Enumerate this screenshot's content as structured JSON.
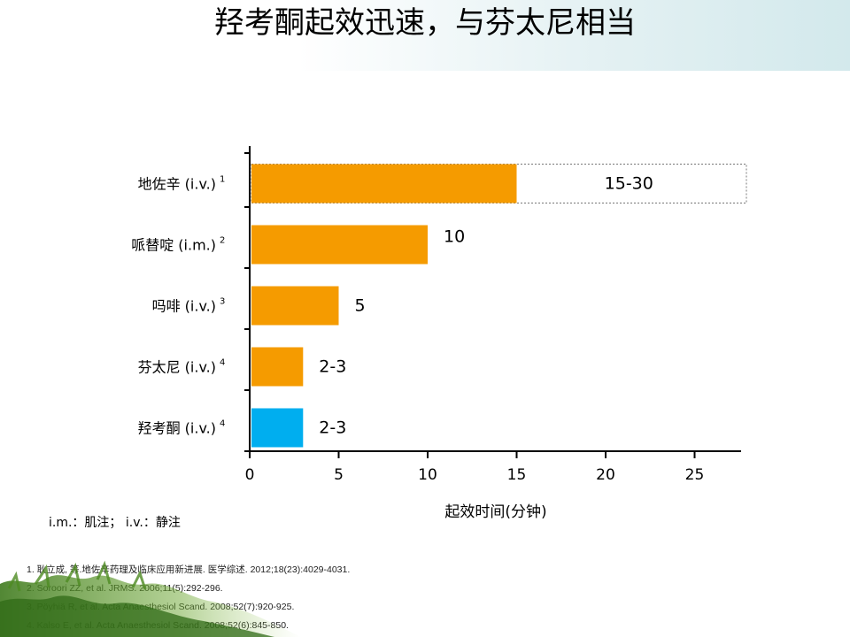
{
  "slide": {
    "title": "羟考酮起效迅速，与芬太尼相当"
  },
  "chart_data": {
    "type": "bar",
    "orientation": "horizontal",
    "xlabel": "起效时间(分钟)",
    "xlim": [
      0,
      27.5
    ],
    "xticks": [
      "0",
      "5",
      "10",
      "15",
      "20",
      "25"
    ],
    "categories": [
      "地佐辛 (i.v.) 1",
      "哌替啶 (i.m.) 2",
      "吗啡 (i.v.) 3",
      "芬太尼 (i.v.) 4",
      "羟考酮 (i.v.) 4"
    ],
    "values": [
      15,
      10,
      5,
      3,
      3
    ],
    "range_max": [
      30,
      null,
      null,
      null,
      null
    ],
    "data_labels": [
      "15-30",
      "10",
      "5",
      "2-3",
      "2-3"
    ],
    "colors": [
      "#f59b00",
      "#f59b00",
      "#f59b00",
      "#f59b00",
      "#00aeef"
    ],
    "grid": false
  },
  "notes": {
    "abbreviations": "i.m.：肌注；  i.v.：静注"
  },
  "references": [
    "1. 耿立成, 等.地佐辛药理及临床应用新进展. 医学综述. 2012;18(23):4029-4031.",
    "2. Soroori ZZ, et al. JRMS. 2006;11(5):292-296.",
    "3. Pöyhiä R, et al. Acta Anaesthesiol Scand. 2008;52(7):920-925.",
    "4. Kalso E, et al. Acta Anaesthesiol Scand. 2008;52(6):845-850."
  ]
}
